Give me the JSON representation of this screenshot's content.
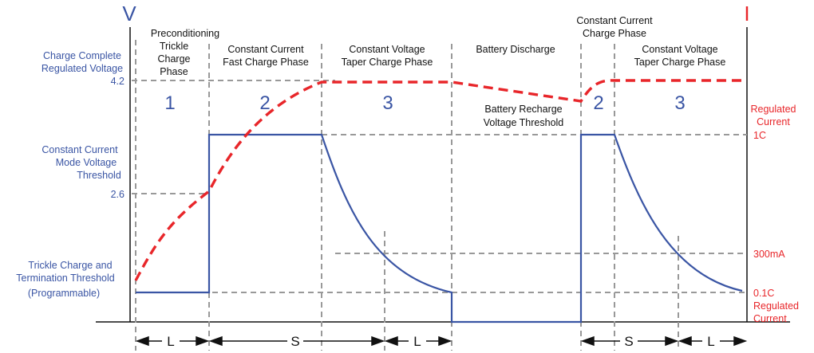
{
  "axes": {
    "left_letter": "V",
    "right_letter": "I"
  },
  "left_labels": {
    "charge_complete_line1": "Charge Complete",
    "charge_complete_line2": "Regulated Voltage",
    "v_4_2": "4.2",
    "cc_mode_line1": "Constant Current",
    "cc_mode_line2": "Mode Voltage",
    "cc_mode_line3": "Threshold",
    "v_2_6": "2.6",
    "trickle_line1": "Trickle Charge and",
    "trickle_line2": "Termination Threshold",
    "trickle_line3": "(Programmable)"
  },
  "right_labels": {
    "regulated_current_top_line1": "Regulated",
    "regulated_current_top_line2": "Current",
    "i_1c": "1C",
    "i_300ma": "300mA",
    "i_0_1c": "0.1C",
    "regulated_current_bottom_line1": "Regulated",
    "regulated_current_bottom_line2": "Current"
  },
  "phases": {
    "precond_line1": "Preconditioning",
    "precond_line2": "Trickle",
    "precond_line3": "Charge",
    "precond_line4": "Phase",
    "cc_fast_line1": "Constant Current",
    "cc_fast_line2": "Fast Charge Phase",
    "cv_taper_line1": "Constant Voltage",
    "cv_taper_line2": "Taper Charge Phase",
    "discharge": "Battery Discharge",
    "recharge_line1": "Battery Recharge",
    "recharge_line2": "Voltage Threshold",
    "cc_charge_line1": "Constant Current",
    "cc_charge_line2": "Charge Phase",
    "cv_taper2_line1": "Constant Voltage",
    "cv_taper2_line2": "Taper Charge Phase"
  },
  "phase_numbers": [
    "1",
    "2",
    "3",
    "2",
    "3"
  ],
  "segments": [
    "L",
    "S",
    "L",
    "S",
    "L"
  ],
  "colors": {
    "voltage_curve": "#e8262a",
    "current_curve": "#3a55a4",
    "guide_lines": "#999999",
    "left_text": "#3a55a4",
    "right_text": "#e8262a"
  }
}
